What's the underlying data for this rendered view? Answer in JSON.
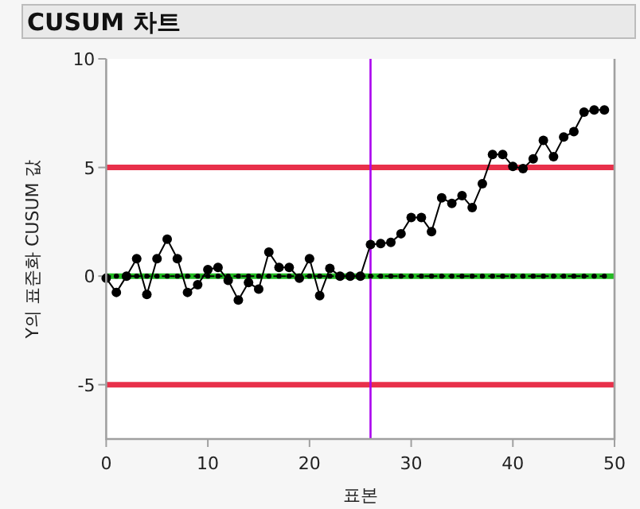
{
  "chart_data": {
    "type": "line",
    "title": "CUSUM 차트",
    "xlabel": "표본",
    "ylabel": "Y의 표준화 CUSUM 값",
    "x": [
      0,
      1,
      2,
      3,
      4,
      5,
      6,
      7,
      8,
      9,
      10,
      11,
      12,
      13,
      14,
      15,
      16,
      17,
      18,
      19,
      20,
      21,
      22,
      23,
      24,
      25,
      26,
      27,
      28,
      29,
      30,
      31,
      32,
      33,
      34,
      35,
      36,
      37,
      38,
      39,
      40,
      41,
      42,
      43,
      44,
      45,
      46,
      47,
      48,
      49
    ],
    "series": [
      {
        "color": "#000000",
        "line_style": "solid",
        "values": [
          -0.1,
          -0.75,
          0,
          0.8,
          -0.85,
          0.8,
          1.7,
          0.8,
          -0.75,
          -0.4,
          0.3,
          0.4,
          -0.2,
          -1.1,
          -0.3,
          -0.6,
          1.1,
          0.4,
          0.4,
          -0.1,
          0.8,
          -0.9,
          0.35,
          0,
          0,
          0,
          1.45,
          1.5,
          1.55,
          1.95,
          2.7,
          2.7,
          2.05,
          3.6,
          3.35,
          3.7,
          3.15,
          4.25,
          5.6,
          5.6,
          5.05,
          4.95,
          5.4,
          6.25,
          5.5,
          6.4,
          6.65,
          7.55,
          7.65,
          7.65
        ]
      },
      {
        "color": "#000000",
        "line_style": "dashed",
        "values": [
          0,
          0,
          0,
          0,
          0,
          0,
          0,
          0,
          0,
          0,
          0,
          0,
          0,
          0,
          0,
          0,
          0,
          0,
          0,
          0,
          0,
          0,
          0,
          0,
          0,
          0,
          0,
          0,
          0,
          0,
          0,
          0,
          0,
          0,
          0,
          0,
          0,
          0,
          0,
          0,
          0,
          0,
          0,
          0,
          0,
          0,
          0,
          0,
          0,
          0
        ]
      }
    ],
    "marker": "circle",
    "grid": false,
    "xlim": [
      0,
      50
    ],
    "xticks": [
      0,
      10,
      20,
      30,
      40,
      50
    ],
    "ylim": [
      -7.5,
      10
    ],
    "yticks": [
      -5,
      0,
      5,
      10
    ],
    "ref_lines": [
      {
        "axis": "y",
        "value": 0,
        "color": "#22bb22"
      },
      {
        "axis": "y",
        "value": 5,
        "color": "#e8304a"
      },
      {
        "axis": "y",
        "value": -5,
        "color": "#e8304a"
      },
      {
        "axis": "x",
        "value": 26,
        "color": "#aa00ee"
      }
    ]
  }
}
